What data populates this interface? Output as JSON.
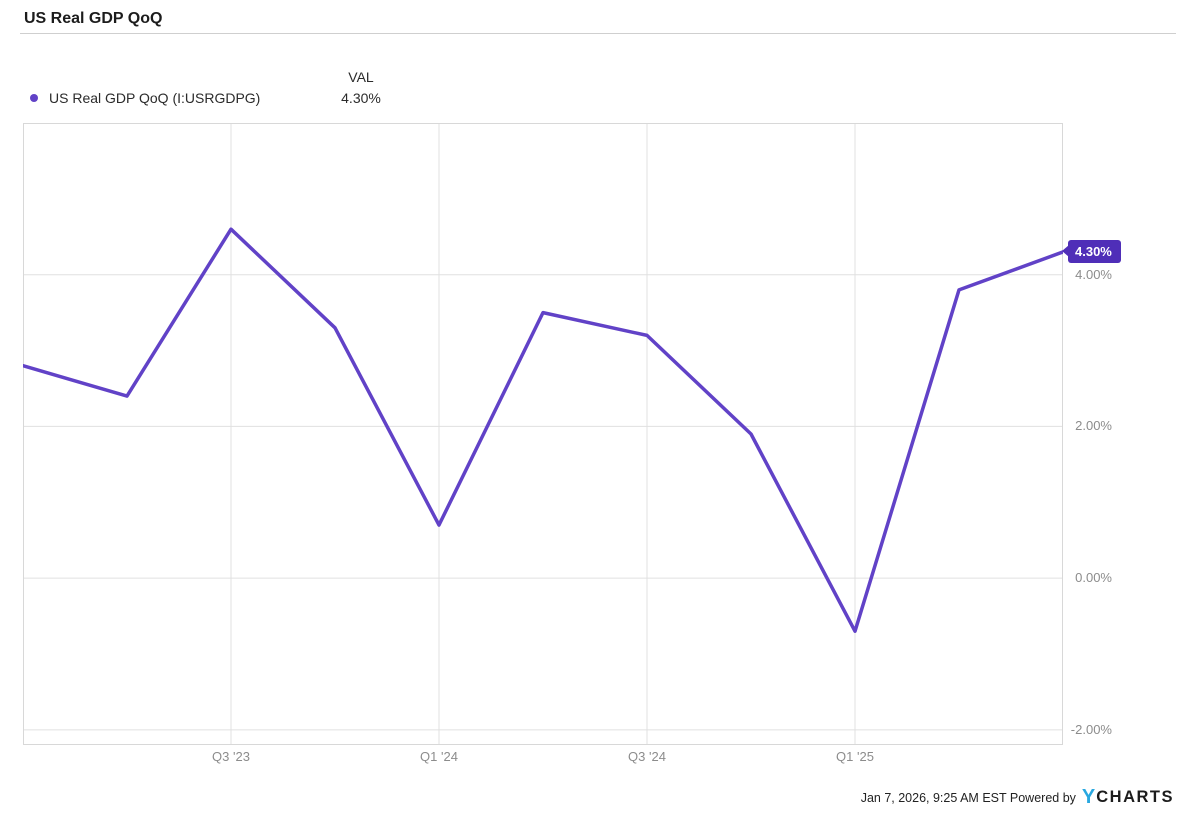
{
  "header": {
    "title": "US Real GDP QoQ"
  },
  "legend": {
    "marker_color": "#6142c7",
    "series_label": "US Real GDP QoQ (I:USRGDPG)",
    "value_header": "VAL",
    "value": "4.30%"
  },
  "badge": {
    "label": "4.30%",
    "color": "#4f2eb8"
  },
  "footer": {
    "timestamp": "Jan 7, 2026, 9:25 AM EST",
    "powered_by": "Powered by",
    "logo_y": "Y",
    "logo_text": "CHARTS"
  },
  "colors": {
    "line": "#6142c7",
    "grid": "#e0e0e0",
    "plot_border": "#d8d8d8",
    "axis_text": "#8c8c8c"
  },
  "chart_data": {
    "type": "line",
    "title": "US Real GDP QoQ",
    "series_name": "US Real GDP QoQ (I:USRGDPG)",
    "x": [
      "Q1 '23",
      "Q2 '23",
      "Q3 '23",
      "Q4 '23",
      "Q1 '24",
      "Q2 '24",
      "Q3 '24",
      "Q4 '24",
      "Q1 '25",
      "Q2 '25",
      "Q3 '25"
    ],
    "values": [
      2.8,
      2.4,
      4.6,
      3.3,
      0.7,
      3.5,
      3.2,
      1.9,
      -0.7,
      3.8,
      4.3
    ],
    "latest_value": 4.3,
    "latest_value_label": "4.30%",
    "ylabel": "",
    "xlabel": "",
    "y_ticks": [
      4,
      2,
      0,
      -2
    ],
    "y_tick_labels": [
      "4.00%",
      "2.00%",
      "0.00%",
      "-2.00%"
    ],
    "x_tick_indices": [
      2,
      4,
      6,
      8
    ],
    "x_tick_labels": [
      "Q3 '23",
      "Q1 '24",
      "Q3 '24",
      "Q1 '25"
    ],
    "ylim": [
      -2.2,
      6.0
    ],
    "grid": true,
    "legend_position": "top-left",
    "line_color": "#6142c7"
  }
}
